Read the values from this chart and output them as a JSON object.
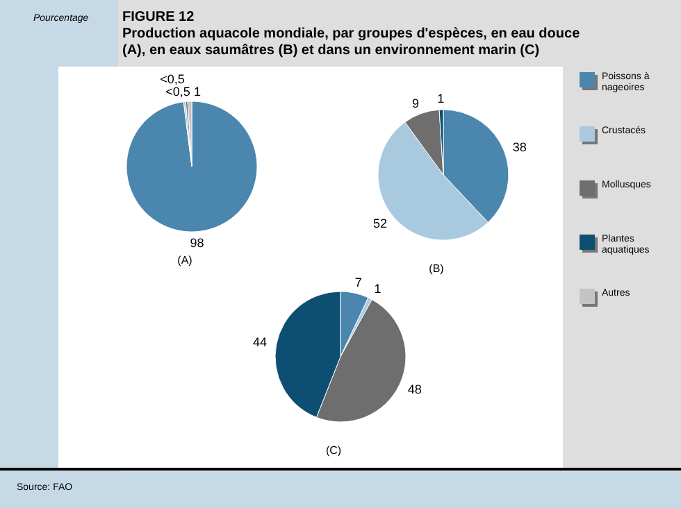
{
  "chart_data": [
    {
      "type": "pie",
      "title": "FIGURE 12",
      "subtitle": "Production aquacole mondiale, par groupes d'espèces, en eau douce (A), en eaux saumâtres (B) et dans un environnement marin (C)",
      "annotations": [
        "Pourcentage",
        "Source: FAO"
      ],
      "xlabel": "(A)",
      "legend": "right",
      "categories": [
        "Poissons à nageoires",
        "Crustacés",
        "Mollusques",
        "Plantes aquatiques",
        "Autres"
      ],
      "values": [
        98,
        0.5,
        0.5,
        null,
        1
      ],
      "value_labels": [
        "98",
        "<0,5",
        "<0,5",
        null,
        "1"
      ],
      "colors": [
        "#4a86ad",
        "#a9c9de",
        "#6e6e6e",
        "#0d4f73",
        "#c4c4c4"
      ]
    },
    {
      "type": "pie",
      "xlabel": "(B)",
      "categories": [
        null,
        null,
        null,
        null
      ],
      "values": [
        38,
        52,
        9,
        1
      ],
      "data_labels": true,
      "colors": [
        "#4a86ad",
        "#a9c9de",
        "#6e6e6e",
        "#0d4f73"
      ]
    },
    {
      "type": "pie",
      "xlabel": "(C)",
      "categories": [
        null,
        null,
        null,
        null
      ],
      "values": [
        7,
        1,
        48,
        44
      ],
      "data_labels": true,
      "colors": [
        "#4a86ad",
        "#a9c9de",
        "#6e6e6e",
        "#0d4f73"
      ]
    }
  ]
}
